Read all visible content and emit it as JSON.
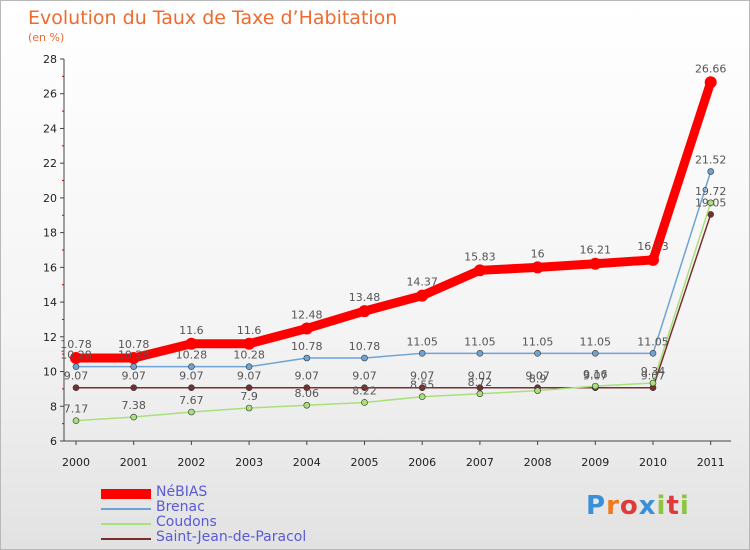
{
  "title": "Evolution du Taux de Taxe d’Habitation",
  "unit": "(en %)",
  "logo": "Proxiti",
  "chart_data": {
    "type": "line",
    "categories": [
      "2000",
      "2001",
      "2002",
      "2003",
      "2004",
      "2005",
      "2006",
      "2007",
      "2008",
      "2009",
      "2010",
      "2011"
    ],
    "ylim": [
      6,
      28
    ],
    "yticks": [
      6,
      8,
      10,
      12,
      14,
      16,
      18,
      20,
      22,
      24,
      26,
      28
    ],
    "grid": false,
    "legend_position": "bottom-left",
    "series": [
      {
        "name": "NéBIAS",
        "color": "#ff0000",
        "values": [
          10.78,
          10.78,
          11.6,
          11.6,
          12.48,
          13.48,
          14.37,
          15.83,
          16,
          16.21,
          16.43,
          26.66
        ],
        "labels": [
          "10.78",
          "10.78",
          "11.6",
          "11.6",
          "12.48",
          "13.48",
          "14.37",
          "15.83",
          "16",
          "16.21",
          "16.43",
          "26.66"
        ]
      },
      {
        "name": "Brenac",
        "color": "#6fa3d6",
        "values": [
          10.28,
          10.28,
          10.28,
          10.28,
          10.78,
          10.78,
          11.05,
          11.05,
          11.05,
          11.05,
          11.05,
          21.52
        ],
        "labels": [
          "10.28",
          "10.28",
          "10.28",
          "10.28",
          "10.78",
          "10.78",
          "11.05",
          "11.05",
          "11.05",
          "11.05",
          "11.05",
          "21.52"
        ]
      },
      {
        "name": "Coudons",
        "color": "#a8e07a",
        "values": [
          7.17,
          7.38,
          7.67,
          7.9,
          8.06,
          8.22,
          8.55,
          8.72,
          8.9,
          9.16,
          9.34,
          19.72
        ],
        "labels": [
          "7.17",
          "7.38",
          "7.67",
          "7.9",
          "8.06",
          "8.22",
          "8.55",
          "8.72",
          "8.9",
          "9.16",
          "9.34",
          "19.72"
        ]
      },
      {
        "name": "Saint-Jean-de-Paracol",
        "color": "#7a2f2f",
        "values": [
          9.07,
          9.07,
          9.07,
          9.07,
          9.07,
          9.07,
          9.07,
          9.07,
          9.07,
          9.07,
          9.07,
          19.05
        ],
        "labels": [
          "9.07",
          "9.07",
          "9.07",
          "9.07",
          "9.07",
          "9.07",
          "9.07",
          "9.07",
          "9.07",
          "9.07",
          "9.07",
          "19.05"
        ]
      }
    ]
  }
}
